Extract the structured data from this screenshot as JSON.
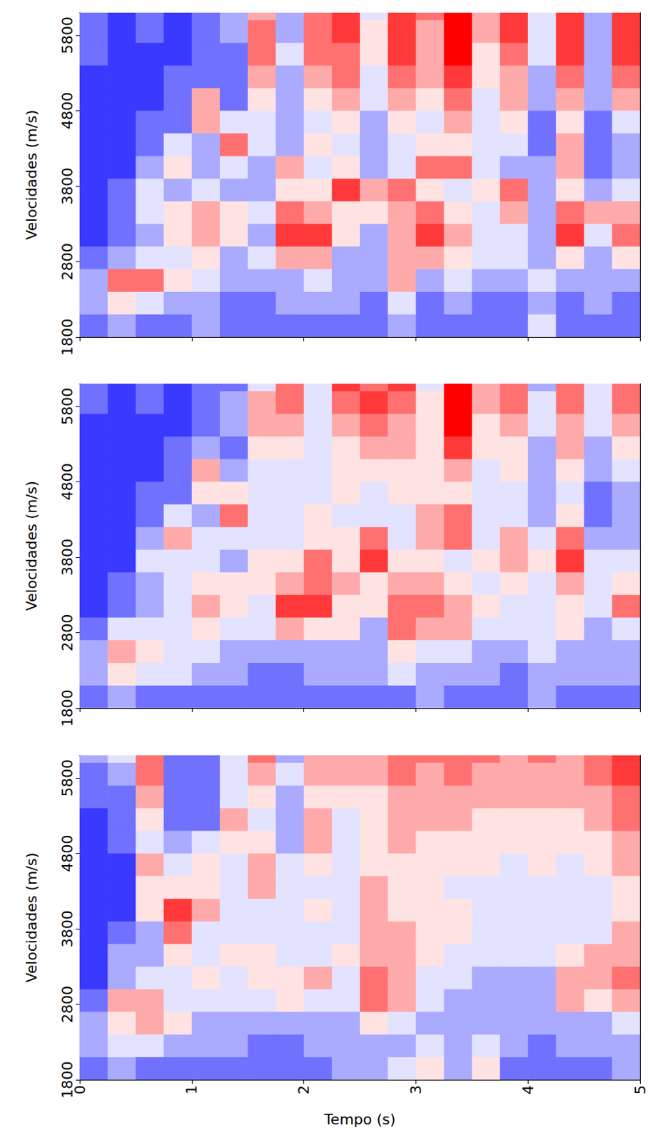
{
  "chart_data": [
    {
      "type": "heatmap",
      "y_label": "Velocidades (m/s)",
      "tick_labels": "y",
      "xlim": [
        0,
        5
      ],
      "xticks": [
        0,
        1,
        2,
        3,
        4,
        5
      ],
      "ylim": [
        1800,
        6100
      ],
      "yticks": [
        1800,
        2800,
        3800,
        4800,
        5800
      ],
      "zlim": [
        0,
        9
      ],
      "x": [
        0.125,
        0.375,
        0.625,
        0.875,
        1.125,
        1.375,
        1.625,
        1.875,
        2.125,
        2.375,
        2.625,
        2.875,
        3.125,
        3.375,
        3.625,
        3.875,
        4.125,
        4.375,
        4.625,
        4.875
      ],
      "y": [
        6150,
        5850,
        5550,
        5250,
        4950,
        4650,
        4350,
        4050,
        3750,
        3450,
        3150,
        2850,
        2550,
        2250,
        1950
      ],
      "z": [
        [
          2,
          1,
          2,
          1,
          2,
          3,
          6,
          3,
          7,
          8,
          4,
          8,
          7,
          9,
          6,
          8,
          4,
          8,
          3,
          8
        ],
        [
          2,
          1,
          2,
          1,
          2,
          3,
          7,
          3,
          7,
          8,
          5,
          8,
          6,
          9,
          6,
          8,
          4,
          8,
          3,
          8
        ],
        [
          2,
          1,
          1,
          1,
          2,
          2,
          7,
          4,
          7,
          7,
          5,
          8,
          6,
          9,
          5,
          7,
          4,
          8,
          3,
          8
        ],
        [
          1,
          1,
          1,
          2,
          2,
          2,
          6,
          3,
          6,
          7,
          4,
          7,
          6,
          8,
          5,
          6,
          3,
          7,
          3,
          7
        ],
        [
          1,
          1,
          1,
          2,
          6,
          2,
          5,
          3,
          5,
          6,
          4,
          6,
          5,
          7,
          4,
          6,
          3,
          6,
          3,
          6
        ],
        [
          1,
          1,
          2,
          2,
          6,
          4,
          4,
          3,
          4,
          5,
          3,
          5,
          4,
          6,
          4,
          5,
          2,
          5,
          2,
          4
        ],
        [
          1,
          1,
          2,
          4,
          3,
          7,
          4,
          3,
          5,
          4,
          3,
          4,
          5,
          5,
          4,
          4,
          2,
          6,
          2,
          3
        ],
        [
          1,
          1,
          3,
          5,
          3,
          4,
          3,
          6,
          4,
          5,
          3,
          4,
          7,
          7,
          4,
          3,
          3,
          6,
          2,
          3
        ],
        [
          1,
          2,
          4,
          3,
          4,
          3,
          3,
          5,
          5,
          8,
          6,
          7,
          5,
          4,
          5,
          7,
          3,
          5,
          3,
          4
        ],
        [
          1,
          2,
          4,
          5,
          6,
          5,
          4,
          7,
          6,
          5,
          5,
          6,
          7,
          5,
          4,
          6,
          3,
          7,
          6,
          6
        ],
        [
          1,
          2,
          3,
          5,
          6,
          5,
          3,
          8,
          8,
          5,
          3,
          6,
          8,
          6,
          4,
          4,
          3,
          8,
          4,
          7
        ],
        [
          2,
          3,
          4,
          4,
          5,
          3,
          4,
          6,
          6,
          3,
          3,
          6,
          6,
          5,
          4,
          4,
          3,
          5,
          3,
          5
        ],
        [
          3,
          7,
          7,
          5,
          4,
          3,
          3,
          3,
          4,
          3,
          3,
          6,
          3,
          4,
          3,
          3,
          4,
          3,
          3,
          3
        ],
        [
          3,
          5,
          4,
          3,
          3,
          2,
          2,
          3,
          3,
          3,
          2,
          4,
          2,
          3,
          2,
          2,
          3,
          2,
          3,
          2
        ],
        [
          2,
          3,
          2,
          2,
          3,
          2,
          2,
          2,
          2,
          2,
          2,
          3,
          2,
          2,
          2,
          2,
          4,
          2,
          2,
          2
        ]
      ]
    },
    {
      "type": "heatmap",
      "y_label": "Velocidades (m/s)",
      "tick_labels": "y",
      "xlim": [
        0,
        5
      ],
      "xticks": [
        0,
        1,
        2,
        3,
        4,
        5
      ],
      "ylim": [
        1800,
        6100
      ],
      "yticks": [
        1800,
        2800,
        3800,
        4800,
        5800
      ],
      "zlim": [
        0,
        9
      ],
      "x": [
        0.125,
        0.375,
        0.625,
        0.875,
        1.125,
        1.375,
        1.625,
        1.875,
        2.125,
        2.375,
        2.625,
        2.875,
        3.125,
        3.375,
        3.625,
        3.875,
        4.125,
        4.375,
        4.625,
        4.875
      ],
      "y": [
        6150,
        5850,
        5550,
        5250,
        4950,
        4650,
        4350,
        4050,
        3750,
        3450,
        3150,
        2850,
        2550,
        2250,
        1950
      ],
      "z": [
        [
          2,
          1,
          2,
          1,
          2,
          2,
          4,
          7,
          4,
          8,
          7,
          8,
          4,
          9,
          6,
          7,
          3,
          7,
          4,
          7
        ],
        [
          2,
          1,
          2,
          1,
          2,
          3,
          6,
          7,
          4,
          7,
          8,
          7,
          5,
          9,
          6,
          7,
          4,
          7,
          4,
          7
        ],
        [
          1,
          1,
          1,
          1,
          2,
          3,
          6,
          6,
          4,
          6,
          7,
          6,
          5,
          9,
          5,
          6,
          4,
          6,
          4,
          6
        ],
        [
          1,
          1,
          1,
          2,
          3,
          2,
          5,
          5,
          4,
          5,
          6,
          6,
          5,
          8,
          5,
          5,
          3,
          6,
          3,
          5
        ],
        [
          1,
          1,
          1,
          2,
          6,
          3,
          4,
          4,
          4,
          5,
          5,
          5,
          5,
          6,
          4,
          5,
          3,
          5,
          3,
          4
        ],
        [
          1,
          1,
          2,
          2,
          5,
          5,
          4,
          4,
          4,
          5,
          4,
          5,
          5,
          5,
          4,
          4,
          3,
          4,
          2,
          3
        ],
        [
          1,
          1,
          2,
          4,
          3,
          7,
          4,
          4,
          5,
          4,
          4,
          4,
          6,
          7,
          4,
          4,
          3,
          5,
          2,
          3
        ],
        [
          1,
          1,
          3,
          6,
          4,
          4,
          4,
          4,
          5,
          5,
          7,
          4,
          6,
          7,
          4,
          6,
          4,
          7,
          3,
          3
        ],
        [
          1,
          1,
          4,
          4,
          4,
          3,
          5,
          5,
          7,
          5,
          8,
          5,
          5,
          4,
          5,
          6,
          5,
          8,
          4,
          4
        ],
        [
          1,
          2,
          3,
          4,
          5,
          5,
          5,
          6,
          7,
          6,
          5,
          6,
          6,
          5,
          4,
          5,
          4,
          6,
          4,
          5
        ],
        [
          1,
          2,
          3,
          4,
          6,
          5,
          4,
          8,
          8,
          5,
          5,
          7,
          7,
          6,
          5,
          4,
          4,
          5,
          4,
          7
        ],
        [
          2,
          4,
          4,
          4,
          5,
          4,
          4,
          6,
          5,
          5,
          3,
          7,
          6,
          6,
          4,
          4,
          4,
          5,
          3,
          4
        ],
        [
          3,
          6,
          5,
          4,
          4,
          3,
          3,
          3,
          3,
          3,
          3,
          5,
          4,
          4,
          3,
          3,
          4,
          3,
          3,
          3
        ],
        [
          3,
          5,
          4,
          4,
          3,
          3,
          2,
          2,
          3,
          3,
          3,
          4,
          3,
          3,
          3,
          2,
          3,
          3,
          3,
          3
        ],
        [
          2,
          3,
          2,
          2,
          2,
          2,
          2,
          2,
          2,
          2,
          2,
          2,
          3,
          2,
          2,
          2,
          3,
          2,
          2,
          2
        ]
      ]
    },
    {
      "type": "heatmap",
      "x_label": "Tempo (s)",
      "y_label": "Velocidades (m/s)",
      "xlim": [
        0,
        5
      ],
      "xticks": [
        0,
        1,
        2,
        3,
        4,
        5
      ],
      "ylim": [
        1800,
        6100
      ],
      "yticks": [
        1800,
        2800,
        3800,
        4800,
        5800
      ],
      "zlim": [
        0,
        9
      ],
      "x": [
        0.125,
        0.375,
        0.625,
        0.875,
        1.125,
        1.375,
        1.625,
        1.875,
        2.125,
        2.375,
        2.625,
        2.875,
        3.125,
        3.375,
        3.625,
        3.875,
        4.125,
        4.375,
        4.625,
        4.875
      ],
      "y": [
        6150,
        5850,
        5550,
        5250,
        4950,
        4650,
        4350,
        4050,
        3750,
        3450,
        3150,
        2850,
        2550,
        2250,
        1950
      ],
      "z": [
        [
          3,
          4,
          7,
          2,
          2,
          4,
          7,
          3,
          6,
          6,
          6,
          7,
          7,
          7,
          7,
          6,
          7,
          6,
          7,
          8
        ],
        [
          2,
          3,
          7,
          2,
          2,
          4,
          6,
          4,
          6,
          6,
          6,
          7,
          6,
          7,
          6,
          6,
          6,
          6,
          7,
          8
        ],
        [
          2,
          2,
          6,
          2,
          2,
          4,
          5,
          3,
          5,
          5,
          5,
          6,
          6,
          6,
          6,
          6,
          6,
          6,
          6,
          7
        ],
        [
          1,
          2,
          5,
          2,
          2,
          6,
          4,
          3,
          6,
          4,
          5,
          6,
          6,
          6,
          5,
          5,
          5,
          5,
          6,
          7
        ],
        [
          1,
          2,
          4,
          3,
          4,
          5,
          5,
          3,
          6,
          4,
          5,
          6,
          5,
          5,
          5,
          5,
          5,
          5,
          5,
          6
        ],
        [
          1,
          1,
          6,
          4,
          5,
          4,
          6,
          4,
          5,
          4,
          5,
          5,
          5,
          5,
          5,
          4,
          5,
          4,
          5,
          6
        ],
        [
          1,
          1,
          5,
          5,
          5,
          4,
          6,
          4,
          4,
          4,
          6,
          5,
          5,
          4,
          4,
          4,
          4,
          4,
          4,
          5
        ],
        [
          1,
          1,
          5,
          8,
          6,
          4,
          4,
          4,
          5,
          4,
          6,
          5,
          5,
          5,
          4,
          4,
          4,
          4,
          4,
          5
        ],
        [
          1,
          2,
          3,
          7,
          4,
          4,
          4,
          4,
          4,
          4,
          6,
          6,
          5,
          5,
          4,
          4,
          4,
          4,
          4,
          6
        ],
        [
          1,
          3,
          3,
          5,
          4,
          5,
          5,
          4,
          4,
          5,
          6,
          6,
          5,
          4,
          4,
          4,
          4,
          5,
          6,
          6
        ],
        [
          1,
          3,
          4,
          4,
          5,
          4,
          5,
          5,
          6,
          4,
          7,
          6,
          4,
          4,
          3,
          3,
          3,
          6,
          6,
          7
        ],
        [
          2,
          6,
          6,
          4,
          4,
          4,
          4,
          5,
          4,
          4,
          7,
          6,
          4,
          3,
          3,
          3,
          3,
          6,
          5,
          6
        ],
        [
          3,
          5,
          6,
          5,
          3,
          3,
          3,
          3,
          3,
          3,
          5,
          4,
          3,
          3,
          3,
          3,
          3,
          3,
          3,
          4
        ],
        [
          3,
          4,
          4,
          3,
          3,
          3,
          2,
          2,
          3,
          3,
          3,
          3,
          4,
          3,
          4,
          3,
          2,
          3,
          3,
          3
        ],
        [
          2,
          3,
          2,
          2,
          2,
          2,
          2,
          2,
          2,
          3,
          3,
          4,
          5,
          3,
          5,
          2,
          2,
          2,
          2,
          3
        ]
      ]
    }
  ]
}
